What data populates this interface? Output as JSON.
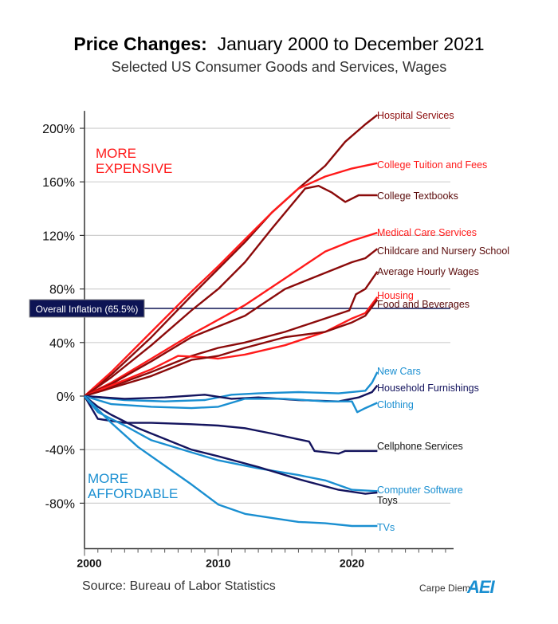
{
  "title_bold": "Price Changes:",
  "title_rest": "  January 2000 to December 2021",
  "subtitle": "Selected US Consumer Goods and Services, Wages",
  "source": "Source: Bureau of Labor Statistics",
  "brand": "Carpe Diem",
  "logo": "AEI",
  "chart_data": {
    "type": "line",
    "title": "Price Changes: January 2000 to December 2021",
    "subtitle": "Selected US Consumer Goods and Services, Wages",
    "xlim": [
      2000,
      2027.6
    ],
    "ylim": [
      -114,
      213
    ],
    "x_ticks": [
      2000,
      2010,
      2020
    ],
    "x_tick_labels": [
      "2000",
      "2010",
      "2020"
    ],
    "y_ticks": [
      -80,
      -40,
      0,
      40,
      80,
      120,
      160,
      200
    ],
    "y_tick_labels": [
      "-80%",
      "-40%",
      "0%",
      "40%",
      "80%",
      "120%",
      "160%",
      "200%"
    ],
    "grid": "horizontal",
    "annotations": {
      "more_expensive": [
        "MORE",
        "EXPENSIVE"
      ],
      "more_affordable": [
        "MORE",
        "AFFORDABLE"
      ],
      "inflation_label": "Overall Inflation (65.5%)",
      "inflation_value": 65.5
    },
    "colors": {
      "bright_red": "#ff1a1a",
      "dark_red": "#8b0a0a",
      "light_blue": "#1a8fd1",
      "navy": "#14145e",
      "inflation": "#0d1454"
    },
    "series": [
      {
        "name": "Hospital Services",
        "color": "#8b0a0a",
        "x": [
          2000,
          2002,
          2005,
          2008,
          2010,
          2012,
          2014,
          2016,
          2018,
          2019.5,
          2021,
          2021.9
        ],
        "values": [
          0,
          16,
          44,
          75,
          95,
          115,
          137,
          155,
          172,
          190,
          203,
          210
        ]
      },
      {
        "name": "College Tuition and Fees",
        "color": "#ff1a1a",
        "x": [
          2000,
          2002,
          2005,
          2008,
          2010,
          2012,
          2014,
          2016,
          2018,
          2020,
          2021.9
        ],
        "values": [
          0,
          18,
          48,
          78,
          97,
          117,
          137,
          155,
          164,
          170,
          174
        ]
      },
      {
        "name": "College Textbooks",
        "color": "#8b0a0a",
        "x": [
          2000,
          2002,
          2005,
          2008,
          2010,
          2012,
          2014,
          2016.5,
          2017.5,
          2018.5,
          2019.5,
          2020.5,
          2021.9
        ],
        "values": [
          0,
          14,
          38,
          64,
          80,
          100,
          125,
          155,
          157,
          152,
          145,
          150,
          150
        ]
      },
      {
        "name": "Medical Care Services",
        "color": "#ff1a1a",
        "x": [
          2000,
          2002,
          2005,
          2008,
          2010,
          2012,
          2015,
          2018,
          2020,
          2021.9
        ],
        "values": [
          0,
          10,
          28,
          46,
          57,
          68,
          88,
          108,
          116,
          122
        ]
      },
      {
        "name": "Childcare and Nursery School",
        "color": "#8b0a0a",
        "x": [
          2000,
          2002,
          2005,
          2008,
          2010,
          2012,
          2015,
          2018,
          2020,
          2021,
          2021.9
        ],
        "values": [
          0,
          9,
          26,
          44,
          52,
          60,
          80,
          92,
          100,
          103,
          110
        ]
      },
      {
        "name": "Average Hourly Wages",
        "color": "#8b0a0a",
        "x": [
          2000,
          2002,
          2005,
          2008,
          2010,
          2012,
          2015,
          2018,
          2019.8,
          2020.3,
          2021,
          2021.9
        ],
        "values": [
          0,
          7,
          18,
          30,
          36,
          40,
          48,
          58,
          64,
          76,
          80,
          93
        ]
      },
      {
        "name": "Housing",
        "color": "#ff1a1a",
        "x": [
          2000,
          2002,
          2005,
          2007,
          2009,
          2010,
          2012,
          2015,
          2018,
          2020,
          2021,
          2021.9
        ],
        "values": [
          0,
          8,
          20,
          30,
          29,
          28,
          31,
          38,
          48,
          58,
          62,
          74
        ]
      },
      {
        "name": "Food and Beverages",
        "color": "#8b0a0a",
        "x": [
          2000,
          2002,
          2005,
          2008,
          2010,
          2012,
          2015,
          2018,
          2020,
          2021,
          2021.9
        ],
        "values": [
          0,
          6,
          15,
          27,
          30,
          36,
          44,
          48,
          55,
          60,
          72
        ]
      },
      {
        "name": "New Cars",
        "color": "#1a8fd1",
        "x": [
          2000,
          2003,
          2006,
          2009,
          2011,
          2013,
          2016,
          2019,
          2021,
          2021.5,
          2021.9
        ],
        "values": [
          0,
          -3,
          -4,
          -3,
          1,
          2,
          3,
          2,
          4,
          10,
          18
        ]
      },
      {
        "name": "Household Furnishings",
        "color": "#14145e",
        "x": [
          2000,
          2003,
          2006,
          2009,
          2011,
          2013,
          2016,
          2019,
          2020.5,
          2021.5,
          2021.9
        ],
        "values": [
          0,
          -2,
          -1,
          1,
          -2,
          -1,
          -3,
          -4,
          -1,
          3,
          8
        ]
      },
      {
        "name": "Clothing",
        "color": "#1a8fd1",
        "x": [
          2000,
          2002,
          2005,
          2008,
          2010,
          2012,
          2015,
          2018,
          2020,
          2020.4,
          2021,
          2021.9
        ],
        "values": [
          0,
          -6,
          -8,
          -9,
          -8,
          -2,
          -2,
          -4,
          -4,
          -12,
          -9,
          -5
        ]
      },
      {
        "name": "Cellphone Services",
        "color": "#14145e",
        "x": [
          2000,
          2001,
          2003,
          2005,
          2008,
          2010,
          2012,
          2014,
          2016.8,
          2017.2,
          2019,
          2019.5,
          2021.9
        ],
        "values": [
          0,
          -17,
          -20,
          -20,
          -21,
          -22,
          -24,
          -28,
          -34,
          -41,
          -43,
          -41,
          -41
        ]
      },
      {
        "name": "Computer Software",
        "color": "#1a8fd1",
        "x": [
          2000,
          2001,
          2003,
          2005,
          2008,
          2010,
          2013,
          2016,
          2018,
          2020,
          2021.9
        ],
        "values": [
          0,
          -12,
          -22,
          -33,
          -42,
          -48,
          -54,
          -59,
          -63,
          -70,
          -71
        ]
      },
      {
        "name": "Toys",
        "color": "#14145e",
        "x": [
          2000,
          2001,
          2002,
          2004,
          2006,
          2008,
          2010,
          2013,
          2016,
          2019,
          2021,
          2021.9
        ],
        "values": [
          0,
          -8,
          -14,
          -24,
          -32,
          -40,
          -45,
          -53,
          -62,
          -70,
          -73,
          -72
        ]
      },
      {
        "name": "TVs",
        "color": "#1a8fd1",
        "x": [
          2000,
          2002,
          2004,
          2006,
          2008,
          2010,
          2012,
          2014,
          2016,
          2018,
          2020,
          2021.9
        ],
        "values": [
          0,
          -20,
          -38,
          -52,
          -66,
          -81,
          -88,
          -91,
          -94,
          -95,
          -97,
          -97
        ]
      }
    ]
  }
}
